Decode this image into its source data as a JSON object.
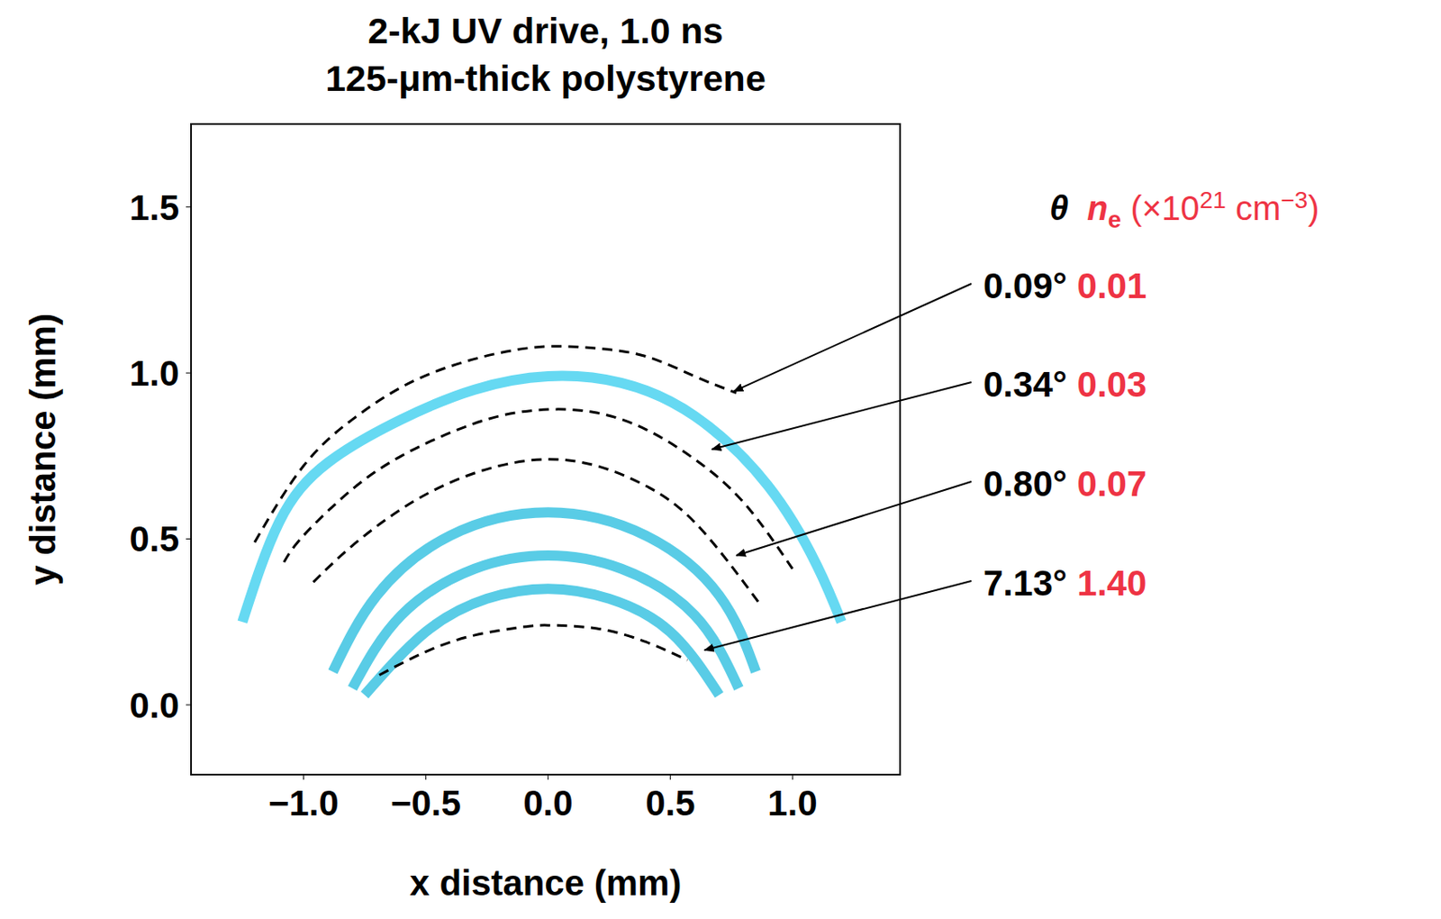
{
  "chart_data": {
    "type": "line",
    "title": [
      "2-kJ UV drive, 1.0 ns",
      "125-μm-thick polystyrene"
    ],
    "x_label": "x distance (mm)",
    "y_label": "y distance (mm)",
    "xlim": [
      -1.46,
      1.44
    ],
    "xticks": [
      {
        "value": -1,
        "label": "−1.0"
      },
      {
        "value": -0.5,
        "label": "−0.5"
      },
      {
        "value": 0,
        "label": "0.0"
      },
      {
        "value": 0.5,
        "label": "0.5"
      },
      {
        "value": 1,
        "label": "1.0"
      }
    ],
    "ylim": [
      -0.21,
      1.75
    ],
    "yticks": [
      {
        "value": 0,
        "label": "0.0"
      },
      {
        "value": 0.5,
        "label": "0.5"
      },
      {
        "value": 1,
        "label": "1.0"
      },
      {
        "value": 1.5,
        "label": "1.5"
      }
    ],
    "grid": false,
    "series": [
      {
        "type": "band",
        "color": "#33ccee",
        "line_style": "solid",
        "x": [
          -1.25,
          -1.1,
          -0.9,
          -0.6,
          -0.3,
          0,
          0.3,
          0.6,
          0.9,
          1.1,
          1.2
        ],
        "values": [
          0.25,
          0.55,
          0.73,
          0.86,
          0.95,
          0.99,
          0.97,
          0.87,
          0.66,
          0.42,
          0.25
        ]
      },
      {
        "type": "band",
        "color": "#22bbdd",
        "line_style": "solid",
        "x": [
          -0.88,
          -0.7,
          -0.4,
          0,
          0.4,
          0.7,
          0.85
        ],
        "values": [
          0.1,
          0.33,
          0.51,
          0.58,
          0.51,
          0.33,
          0.1
        ]
      },
      {
        "type": "band",
        "color": "#22bbdd",
        "line_style": "solid",
        "x": [
          -0.8,
          -0.6,
          -0.3,
          0,
          0.3,
          0.6,
          0.78
        ],
        "values": [
          0.05,
          0.27,
          0.41,
          0.45,
          0.41,
          0.27,
          0.05
        ]
      },
      {
        "type": "band",
        "color": "#22bbdd",
        "line_style": "solid",
        "x": [
          -0.75,
          -0.5,
          -0.25,
          0,
          0.25,
          0.5,
          0.7
        ],
        "values": [
          0.03,
          0.22,
          0.32,
          0.35,
          0.32,
          0.22,
          0.03
        ]
      },
      {
        "type": "contour",
        "color": "#000000",
        "line_style": "dashed",
        "x": [
          -1.2,
          -1.0,
          -0.8,
          -0.6,
          -0.4,
          -0.2,
          0,
          0.2,
          0.4,
          0.6,
          0.77
        ],
        "values": [
          0.49,
          0.72,
          0.86,
          0.957,
          1.02,
          1.06,
          1.08,
          1.074,
          1.05,
          0.99,
          0.94
        ]
      },
      {
        "type": "contour",
        "color": "#000000",
        "line_style": "dashed",
        "x": [
          -1.08,
          -1.0,
          -0.8,
          -0.6,
          -0.4,
          -0.2,
          0,
          0.2,
          0.4,
          0.6,
          0.8,
          1.0
        ],
        "values": [
          0.43,
          0.51,
          0.65,
          0.75,
          0.82,
          0.87,
          0.89,
          0.88,
          0.83,
          0.74,
          0.61,
          0.41
        ]
      },
      {
        "type": "contour",
        "color": "#000000",
        "line_style": "dashed",
        "x": [
          -0.96,
          -0.8,
          -0.6,
          -0.4,
          -0.2,
          0,
          0.2,
          0.4,
          0.6,
          0.8,
          0.87
        ],
        "values": [
          0.37,
          0.48,
          0.59,
          0.67,
          0.72,
          0.74,
          0.72,
          0.66,
          0.55,
          0.37,
          0.3
        ]
      },
      {
        "type": "contour",
        "color": "#000000",
        "line_style": "dashed",
        "x": [
          -0.69,
          -0.5,
          -0.3,
          -0.1,
          0,
          0.2,
          0.4,
          0.57
        ],
        "values": [
          0.09,
          0.16,
          0.21,
          0.235,
          0.24,
          0.23,
          0.19,
          0.135
        ]
      }
    ],
    "annotation_header": {
      "theta": "θ",
      "n_e": [
        "n",
        "e",
        " (×10",
        "21",
        " cm",
        "−3",
        ")"
      ],
      "n_e_color": "#ee3344"
    },
    "annotations": [
      {
        "theta": "0.09°",
        "n_e": "0.01",
        "arrow_to": [
          0.76,
          0.945
        ]
      },
      {
        "theta": "0.34°",
        "n_e": "0.03",
        "arrow_to": [
          0.67,
          0.77
        ]
      },
      {
        "theta": "0.80°",
        "n_e": "0.07",
        "arrow_to": [
          0.77,
          0.45
        ]
      },
      {
        "theta": "7.13°",
        "n_e": "1.40",
        "arrow_to": [
          0.64,
          0.165
        ]
      }
    ]
  }
}
